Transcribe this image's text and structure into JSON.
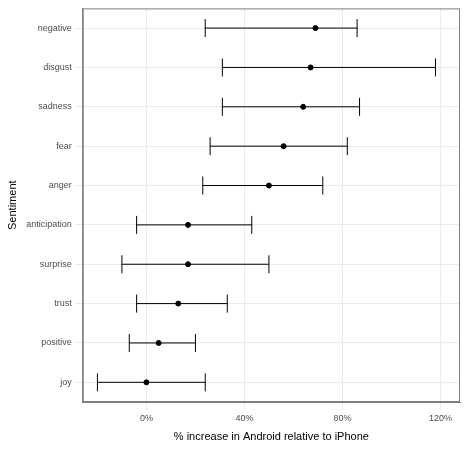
{
  "chart_data": {
    "type": "scatter",
    "x_label": "% increase in Android relative to iPhone",
    "y_label": "Sentiment",
    "categories": [
      "negative",
      "disgust",
      "sadness",
      "fear",
      "anger",
      "anticipation",
      "surprise",
      "trust",
      "positive",
      "joy"
    ],
    "values": [
      69,
      67,
      64,
      56,
      50,
      17,
      17,
      13,
      5,
      0
    ],
    "lower": [
      24,
      31,
      31,
      26,
      23,
      -4,
      -10,
      -4,
      -7,
      -20
    ],
    "upper": [
      86,
      118,
      87,
      82,
      72,
      43,
      50,
      33,
      20,
      24
    ],
    "xlim": [
      -26,
      128
    ],
    "xticks": [
      {
        "value": 0,
        "label": "0%"
      },
      {
        "value": 40,
        "label": "40%"
      },
      {
        "value": 80,
        "label": "80%"
      },
      {
        "value": 120,
        "label": "120%"
      }
    ],
    "grid": true,
    "color": "#000000"
  }
}
